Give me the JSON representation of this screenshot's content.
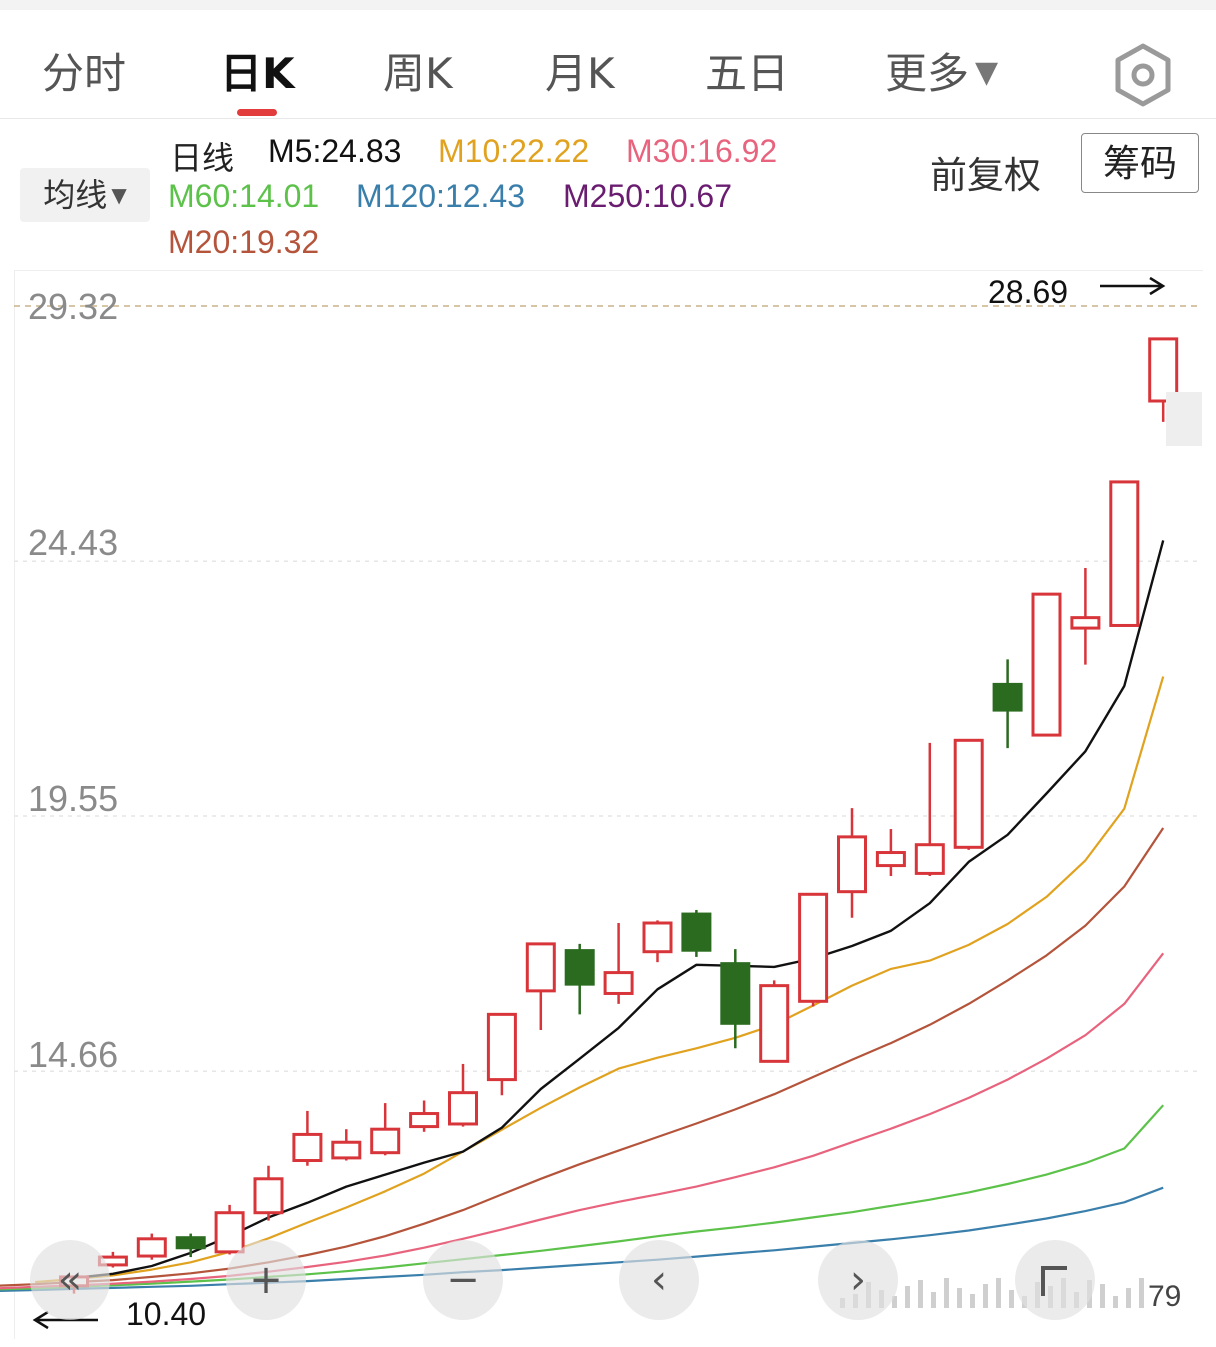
{
  "tabs": [
    {
      "label": "分时",
      "active": false
    },
    {
      "label": "日K",
      "active": true
    },
    {
      "label": "周K",
      "active": false
    },
    {
      "label": "月K",
      "active": false
    },
    {
      "label": "五日",
      "active": false
    },
    {
      "label": "更多",
      "active": false
    }
  ],
  "more_arrow": "▼",
  "toolbar": {
    "ma_button": "均线",
    "ma_caret": "▼",
    "adjust": "前复权",
    "chips": "筹码"
  },
  "ma_legend": {
    "daily": "日线",
    "m5": "M5:24.83",
    "m10": "M10:22.22",
    "m30": "M30:16.92",
    "m60": "M60:14.01",
    "m120": "M120:12.43",
    "m250": "M250:10.67",
    "m20": "M20:19.32"
  },
  "colors": {
    "up": "#d8353a",
    "down": "#2a6b1f",
    "m5": "#111111",
    "m10": "#e0a21f",
    "m20": "#b4543b",
    "m30": "#e8637d",
    "m60": "#5cc24a",
    "m120": "#3a7fab",
    "m250": "#6a1c70"
  },
  "controls": {
    "back": "«",
    "zoom_in": "+",
    "zoom_out": "−",
    "prev": "‹",
    "next": "›"
  },
  "chart_data": {
    "type": "candlestick",
    "yticks": [
      "29.32",
      "24.43",
      "19.55",
      "14.66"
    ],
    "ytick_values": [
      29.32,
      24.43,
      19.55,
      14.66
    ],
    "ylim": [
      10.0,
      30.0
    ],
    "grid": true,
    "max_label": "28.69",
    "min_label": "10.40",
    "volume_label": "79",
    "candles": [
      {
        "o": 10.55,
        "c": 10.72,
        "h": 10.72,
        "l": 10.4
      },
      {
        "o": 10.95,
        "c": 11.1,
        "h": 11.2,
        "l": 10.9
      },
      {
        "o": 11.12,
        "c": 11.45,
        "h": 11.55,
        "l": 11.05
      },
      {
        "o": 11.5,
        "c": 11.25,
        "h": 11.55,
        "l": 11.1
      },
      {
        "o": 11.2,
        "c": 11.95,
        "h": 12.1,
        "l": 11.15
      },
      {
        "o": 11.95,
        "c": 12.6,
        "h": 12.85,
        "l": 11.8
      },
      {
        "o": 12.95,
        "c": 13.45,
        "h": 13.9,
        "l": 12.85
      },
      {
        "o": 13.0,
        "c": 13.3,
        "h": 13.55,
        "l": 12.95
      },
      {
        "o": 13.1,
        "c": 13.55,
        "h": 14.05,
        "l": 13.05
      },
      {
        "o": 13.6,
        "c": 13.85,
        "h": 14.1,
        "l": 13.5
      },
      {
        "o": 13.65,
        "c": 14.25,
        "h": 14.8,
        "l": 13.6
      },
      {
        "o": 14.5,
        "c": 15.75,
        "h": 15.75,
        "l": 14.2
      },
      {
        "o": 16.2,
        "c": 17.1,
        "h": 17.1,
        "l": 15.45
      },
      {
        "o": 17.0,
        "c": 16.3,
        "h": 17.1,
        "l": 15.75
      },
      {
        "o": 16.15,
        "c": 16.55,
        "h": 17.5,
        "l": 15.95
      },
      {
        "o": 16.95,
        "c": 17.5,
        "h": 17.55,
        "l": 16.75
      },
      {
        "o": 17.7,
        "c": 16.95,
        "h": 17.75,
        "l": 16.85
      },
      {
        "o": 16.75,
        "c": 15.55,
        "h": 17.0,
        "l": 15.1
      },
      {
        "o": 14.85,
        "c": 16.3,
        "h": 16.4,
        "l": 14.85
      },
      {
        "o": 16.0,
        "c": 18.05,
        "h": 18.05,
        "l": 15.9
      },
      {
        "o": 18.1,
        "c": 19.15,
        "h": 19.7,
        "l": 17.6
      },
      {
        "o": 18.6,
        "c": 18.85,
        "h": 19.3,
        "l": 18.4
      },
      {
        "o": 18.45,
        "c": 19.0,
        "h": 20.95,
        "l": 18.4
      },
      {
        "o": 18.95,
        "c": 21.0,
        "h": 21.0,
        "l": 18.9
      },
      {
        "o": 22.1,
        "c": 21.55,
        "h": 22.55,
        "l": 20.85
      },
      {
        "o": 21.1,
        "c": 23.8,
        "h": 23.8,
        "l": 21.1
      },
      {
        "o": 23.15,
        "c": 23.35,
        "h": 24.3,
        "l": 22.45
      },
      {
        "o": 23.2,
        "c": 25.95,
        "h": 25.95,
        "l": 23.2
      },
      {
        "o": 27.5,
        "c": 28.69,
        "h": 28.69,
        "l": 27.1
      }
    ],
    "ma_series": [
      {
        "name": "M5",
        "key": "m5",
        "start": 1,
        "values": [
          10.7,
          10.78,
          10.93,
          11.18,
          11.5,
          11.86,
          12.14,
          12.45,
          12.68,
          12.91,
          13.12,
          13.58,
          14.32,
          14.9,
          15.49,
          16.23,
          16.7,
          16.68,
          16.66,
          16.82,
          17.06,
          17.35,
          17.88,
          18.67,
          19.19,
          19.98,
          20.79,
          22.04,
          24.83
        ]
      },
      {
        "name": "M10",
        "key": "m10",
        "start": 1,
        "values": [
          10.62,
          10.68,
          10.75,
          10.86,
          11.0,
          11.2,
          11.46,
          11.76,
          12.05,
          12.36,
          12.7,
          13.12,
          13.54,
          13.96,
          14.35,
          14.71,
          14.92,
          15.1,
          15.3,
          15.55,
          15.92,
          16.3,
          16.62,
          16.78,
          17.08,
          17.48,
          18.0,
          18.7,
          19.69,
          22.22
        ]
      },
      {
        "name": "M20",
        "key": "m20",
        "start": 1,
        "values": [
          10.55,
          10.58,
          10.62,
          10.66,
          10.72,
          10.79,
          10.88,
          11.0,
          11.14,
          11.3,
          11.5,
          11.74,
          12.0,
          12.3,
          12.6,
          12.88,
          13.14,
          13.4,
          13.66,
          13.93,
          14.22,
          14.55,
          14.88,
          15.2,
          15.55,
          15.95,
          16.4,
          16.88,
          17.45,
          18.2,
          19.32
        ]
      },
      {
        "name": "M30",
        "key": "m30",
        "start": 1,
        "values": [
          10.5,
          10.53,
          10.56,
          10.59,
          10.63,
          10.68,
          10.74,
          10.82,
          10.91,
          11.01,
          11.13,
          11.28,
          11.45,
          11.63,
          11.82,
          12.0,
          12.16,
          12.3,
          12.45,
          12.63,
          12.82,
          13.04,
          13.3,
          13.56,
          13.84,
          14.15,
          14.5,
          14.9,
          15.35,
          15.95,
          16.92
        ]
      },
      {
        "name": "M60",
        "key": "m60",
        "start": 1,
        "values": [
          10.48,
          10.5,
          10.53,
          10.56,
          10.59,
          10.63,
          10.67,
          10.72,
          10.77,
          10.83,
          10.9,
          10.98,
          11.06,
          11.14,
          11.22,
          11.31,
          11.4,
          11.5,
          11.59,
          11.67,
          11.76,
          11.86,
          11.96,
          12.08,
          12.2,
          12.34,
          12.5,
          12.68,
          12.9,
          13.18,
          14.01
        ]
      },
      {
        "name": "M120",
        "key": "m120",
        "start": 1,
        "values": [
          10.45,
          10.47,
          10.49,
          10.51,
          10.53,
          10.55,
          10.58,
          10.61,
          10.64,
          10.68,
          10.72,
          10.76,
          10.81,
          10.85,
          10.9,
          10.95,
          11.0,
          11.05,
          11.11,
          11.17,
          11.23,
          11.3,
          11.37,
          11.44,
          11.52,
          11.61,
          11.72,
          11.84,
          11.98,
          12.15,
          12.43
        ]
      }
    ]
  }
}
